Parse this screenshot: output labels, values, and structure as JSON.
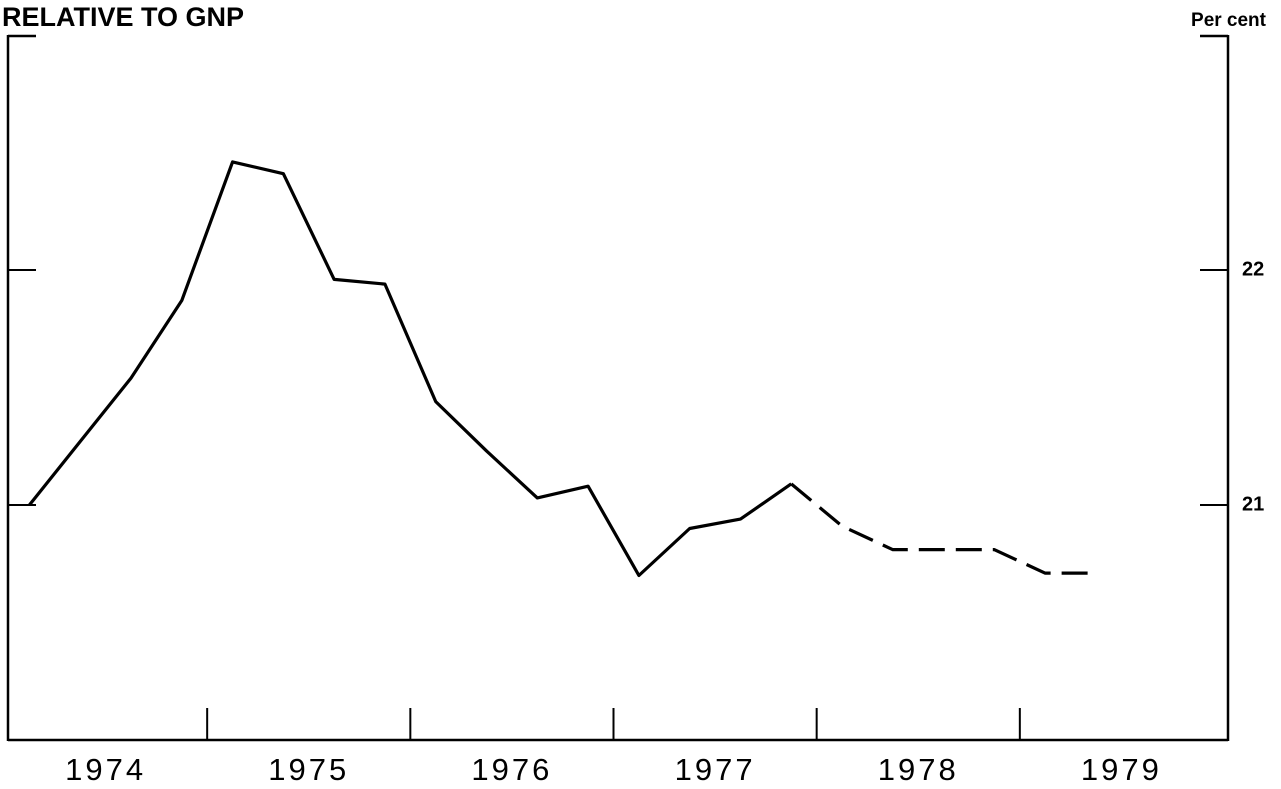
{
  "chart_data": {
    "type": "line",
    "title": "RELATIVE TO GNP",
    "y_label": "Per cent",
    "categories": [
      "1974",
      "1975",
      "1976",
      "1977",
      "1978",
      "1979"
    ],
    "x": [
      1974.125,
      1974.375,
      1974.625,
      1974.875,
      1975.125,
      1975.375,
      1975.625,
      1975.875,
      1976.125,
      1976.375,
      1976.625,
      1976.875,
      1977.125,
      1977.375,
      1977.625,
      1977.875,
      1978.125,
      1978.375,
      1978.625,
      1978.875,
      1979.125,
      1979.375
    ],
    "series": [
      {
        "color": "#000000",
        "values": [
          21.0,
          21.27,
          21.54,
          21.87,
          22.46,
          22.41,
          21.96,
          21.94,
          21.44,
          21.23,
          21.03,
          21.08,
          20.7,
          20.9,
          20.94,
          21.09,
          20.91,
          20.81,
          20.81,
          20.81,
          20.71,
          20.71
        ],
        "dashed_from_index": 15
      }
    ],
    "xlim": [
      1974,
      1980
    ],
    "xticks": [
      1975,
      1976,
      1977,
      1978,
      1979
    ],
    "ylim": [
      20,
      23
    ],
    "yticks": [
      21,
      22
    ]
  }
}
